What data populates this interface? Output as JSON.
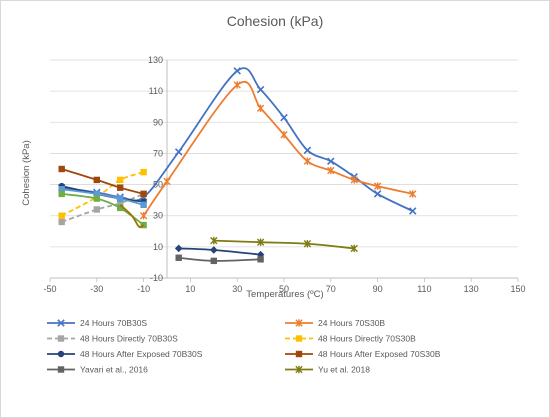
{
  "chart_data": {
    "type": "line",
    "title": "Cohesion (kPa)",
    "xlabel": "Temperatures (ºC)",
    "ylabel": "Cohesion (kPa)",
    "xlim": [
      -50,
      150
    ],
    "ylim": [
      -10,
      130
    ],
    "x_ticks": [
      "-50",
      "-30",
      "-10",
      "10",
      "30",
      "50",
      "70",
      "90",
      "110",
      "130",
      "150"
    ],
    "y_ticks": [
      "130",
      "110",
      "90",
      "70",
      "50",
      "30",
      "10",
      "-10"
    ],
    "grid": true,
    "legend_position": "bottom",
    "series": [
      {
        "name": "24 Hours 70B30S",
        "color": "#4472c4",
        "marker": "x",
        "dash": "solid",
        "points": [
          [
            -45,
            48
          ],
          [
            -30,
            45
          ],
          [
            -20,
            42
          ],
          [
            -10,
            42
          ],
          [
            5,
            71
          ],
          [
            30,
            123
          ],
          [
            40,
            111
          ],
          [
            50,
            93
          ],
          [
            60,
            72
          ],
          [
            70,
            65
          ],
          [
            80,
            55
          ],
          [
            90,
            44
          ],
          [
            105,
            33
          ]
        ]
      },
      {
        "name": "24 Hours 70S30B",
        "color": "#ed7d31",
        "marker": "star",
        "dash": "solid",
        "points": [
          [
            -10,
            30
          ],
          [
            0,
            52
          ],
          [
            30,
            114
          ],
          [
            40,
            99
          ],
          [
            50,
            82
          ],
          [
            60,
            65
          ],
          [
            70,
            59
          ],
          [
            80,
            53
          ],
          [
            90,
            49
          ],
          [
            105,
            44
          ]
        ]
      },
      {
        "name": "48 Hours Directly 70B30S",
        "color": "#a5a5a5",
        "marker": "square",
        "dash": "dash",
        "points": [
          [
            -45,
            26
          ],
          [
            -30,
            34
          ],
          [
            -20,
            38
          ],
          [
            -10,
            44
          ]
        ]
      },
      {
        "name": "48 Hours Directly 70S30B",
        "color": "#ffc000",
        "marker": "square",
        "dash": "dash",
        "points": [
          [
            -45,
            30
          ],
          [
            -30,
            42
          ],
          [
            -20,
            53
          ],
          [
            -10,
            58
          ]
        ]
      },
      {
        "name": "48 Hours After Exposed 70B30S",
        "color": "#264478",
        "marker": "circle",
        "dash": "solid",
        "points": [
          [
            -45,
            49
          ],
          [
            -30,
            44
          ],
          [
            -20,
            41
          ],
          [
            -10,
            39
          ]
        ]
      },
      {
        "name": "48 Hours After Exposed 70S30B",
        "color": "#9e480e",
        "marker": "square",
        "dash": "solid",
        "points": [
          [
            -45,
            60
          ],
          [
            -30,
            53
          ],
          [
            -20,
            48
          ],
          [
            -10,
            44
          ]
        ]
      },
      {
        "name": "",
        "color": "#5b9bd5",
        "marker": "square",
        "dash": "solid",
        "points": [
          [
            -45,
            47
          ],
          [
            -30,
            44
          ],
          [
            -20,
            41
          ],
          [
            -10,
            37
          ]
        ]
      },
      {
        "name": "",
        "color": "#70ad47",
        "marker": "square",
        "dash": "solid",
        "points": [
          [
            -45,
            44
          ],
          [
            -30,
            41
          ],
          [
            -20,
            35
          ],
          [
            -10,
            24
          ]
        ]
      },
      {
        "name": "",
        "color": "#997300",
        "marker": "none",
        "dash": "solid",
        "points": [
          [
            -20,
            37
          ],
          [
            -15,
            30
          ],
          [
            -12,
            23
          ],
          [
            -10,
            24
          ]
        ]
      },
      {
        "name": "",
        "color": "#264478",
        "marker": "diamond",
        "dash": "solid",
        "points": [
          [
            5,
            9
          ],
          [
            20,
            8
          ],
          [
            40,
            5
          ]
        ]
      },
      {
        "name": "Yavari et al., 2016",
        "color": "#636363",
        "marker": "square",
        "dash": "solid",
        "points": [
          [
            5,
            3
          ],
          [
            20,
            1
          ],
          [
            40,
            2
          ]
        ]
      },
      {
        "name": "Yu et al. 2018",
        "color": "#7f7c12",
        "marker": "star",
        "dash": "solid",
        "points": [
          [
            20,
            14
          ],
          [
            40,
            13
          ],
          [
            60,
            12
          ],
          [
            80,
            9
          ]
        ]
      }
    ]
  }
}
